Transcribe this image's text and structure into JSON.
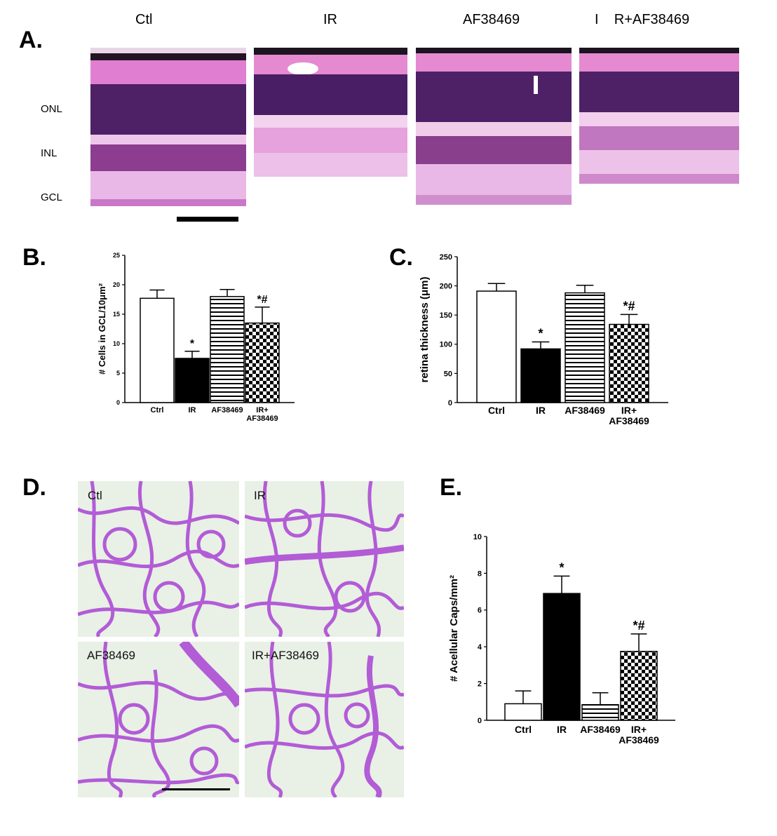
{
  "panels": {
    "a": "A.",
    "b": "B.",
    "c": "C.",
    "d": "D.",
    "e": "E."
  },
  "histology": {
    "columns": [
      "Ctl",
      "IR",
      "AF38469",
      "I    R+AF38469"
    ],
    "layers": [
      "ONL",
      "INL",
      "GCL"
    ]
  },
  "flatmount": {
    "labels": [
      "Ctl",
      "IR",
      "AF38469",
      "IR+AF38469"
    ]
  },
  "colors": {
    "h_e_pink": "#e58ad0",
    "h_e_purple": "#5a2470",
    "vessel": "#b25cd6",
    "vessel_background": "#e9f0e6"
  },
  "chart_data": [
    {
      "type": "bar",
      "panel": "B",
      "categories": [
        "Ctrl",
        "IR",
        "AF38469",
        "IR+ AF38469"
      ],
      "values": [
        17.7,
        7.5,
        18.0,
        13.5
      ],
      "errors": [
        1.4,
        1.2,
        1.2,
        2.7
      ],
      "annotations": [
        "",
        "*",
        "",
        "*#"
      ],
      "fills": [
        "white",
        "black",
        "horizontal-stripes",
        "checkerboard"
      ],
      "ylabel": "# Cells in GCL/10μm²",
      "ylim": [
        0,
        25
      ],
      "yticks": [
        0,
        5,
        10,
        15,
        20,
        25
      ]
    },
    {
      "type": "bar",
      "panel": "C",
      "categories": [
        "Ctrl",
        "IR",
        "AF38469",
        "IR+ AF38469"
      ],
      "values": [
        191,
        92,
        188,
        134
      ],
      "errors": [
        13,
        12,
        13,
        17
      ],
      "annotations": [
        "",
        "*",
        "",
        "*#"
      ],
      "fills": [
        "white",
        "black",
        "horizontal-stripes",
        "checkerboard"
      ],
      "ylabel": "retina thickness (μm)",
      "ylim": [
        0,
        250
      ],
      "yticks": [
        0,
        50,
        100,
        150,
        200,
        250
      ]
    },
    {
      "type": "bar",
      "panel": "E",
      "categories": [
        "Ctrl",
        "IR",
        "AF38469",
        "IR+ AF38469"
      ],
      "values": [
        0.9,
        6.9,
        0.85,
        3.75
      ],
      "errors": [
        0.7,
        0.95,
        0.65,
        0.95
      ],
      "annotations": [
        "",
        "*",
        "",
        "*#"
      ],
      "fills": [
        "white",
        "black",
        "horizontal-stripes",
        "checkerboard"
      ],
      "ylabel": "# Acellular Caps/mm²",
      "ylim": [
        0,
        10
      ],
      "yticks": [
        0,
        2,
        4,
        6,
        8,
        10
      ]
    }
  ]
}
